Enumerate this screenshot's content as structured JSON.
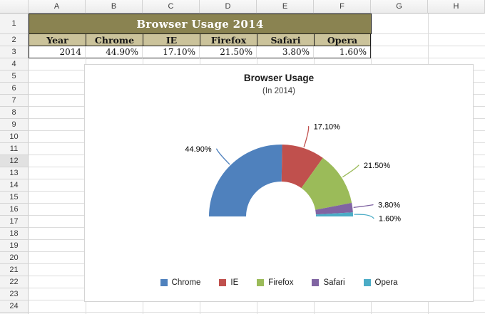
{
  "spreadsheet": {
    "column_letters": [
      "A",
      "B",
      "C",
      "D",
      "E",
      "F",
      "G",
      "H"
    ],
    "visible_rows": 25,
    "active_row": 12,
    "table": {
      "title": "Browser Usage 2014",
      "columns": [
        "Year",
        "Chrome",
        "IE",
        "Firefox",
        "Safari",
        "Opera"
      ],
      "values": [
        "2014",
        "44.90%",
        "17.10%",
        "21.50%",
        "3.80%",
        "1.60%"
      ],
      "title_bg": "#8A8351",
      "header_bg": "#CBC39B"
    }
  },
  "chart_data": {
    "type": "pie",
    "variant": "half-doughnut",
    "title": "Browser Usage",
    "subtitle": "(In 2014)",
    "categories": [
      "Chrome",
      "IE",
      "Firefox",
      "Safari",
      "Opera"
    ],
    "values": [
      44.9,
      17.1,
      21.5,
      3.8,
      1.6
    ],
    "value_labels": [
      "44.90%",
      "17.10%",
      "21.50%",
      "3.80%",
      "1.60%"
    ],
    "colors": [
      "#4F81BD",
      "#C0504D",
      "#9BBB59",
      "#8064A2",
      "#4BACC6"
    ],
    "legend": [
      "Chrome",
      "IE",
      "Firefox",
      "Safari",
      "Opera"
    ],
    "legend_position": "bottom"
  }
}
